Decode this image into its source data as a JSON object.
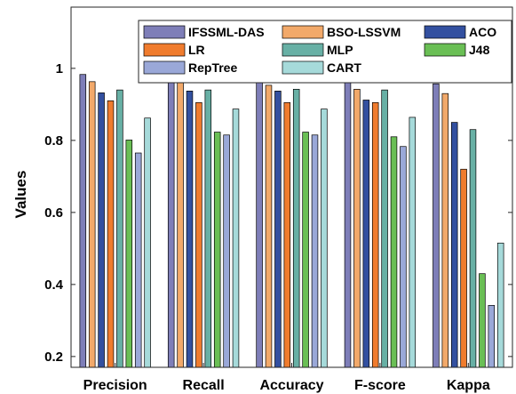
{
  "chart_data": {
    "type": "bar",
    "title": "",
    "xlabel": "",
    "ylabel": "Values",
    "ylim": [
      0.17,
      1.17
    ],
    "yticks": [
      0.2,
      0.4,
      0.6,
      0.8,
      1
    ],
    "ytick_labels": [
      "0.2",
      "0.4",
      "0.6",
      "0.8",
      "1"
    ],
    "grid": false,
    "legend_position": "top-right",
    "categories": [
      "Precision",
      "Recall",
      "Accuracy",
      "F-score",
      "Kappa"
    ],
    "series": [
      {
        "name": "IFSSML-DAS",
        "color": "#7e7eb8",
        "values": [
          0.983,
          0.985,
          0.971,
          0.962,
          0.957
        ]
      },
      {
        "name": "BSO-LSSVM",
        "color": "#f2a96a",
        "values": [
          0.963,
          0.97,
          0.953,
          0.942,
          0.93
        ]
      },
      {
        "name": "ACO",
        "color": "#3350a0",
        "values": [
          0.932,
          0.937,
          0.937,
          0.912,
          0.85
        ]
      },
      {
        "name": "LR",
        "color": "#f07c2e",
        "values": [
          0.91,
          0.905,
          0.905,
          0.905,
          0.72
        ]
      },
      {
        "name": "MLP",
        "color": "#68b0a5",
        "values": [
          0.94,
          0.94,
          0.942,
          0.94,
          0.83
        ]
      },
      {
        "name": "J48",
        "color": "#6abf55",
        "values": [
          0.801,
          0.823,
          0.823,
          0.81,
          0.43
        ]
      },
      {
        "name": "RepTree",
        "color": "#9aa8d8",
        "values": [
          0.765,
          0.815,
          0.815,
          0.783,
          0.342
        ]
      },
      {
        "name": "CART",
        "color": "#a6dada",
        "values": [
          0.862,
          0.887,
          0.887,
          0.864,
          0.515
        ]
      }
    ]
  }
}
